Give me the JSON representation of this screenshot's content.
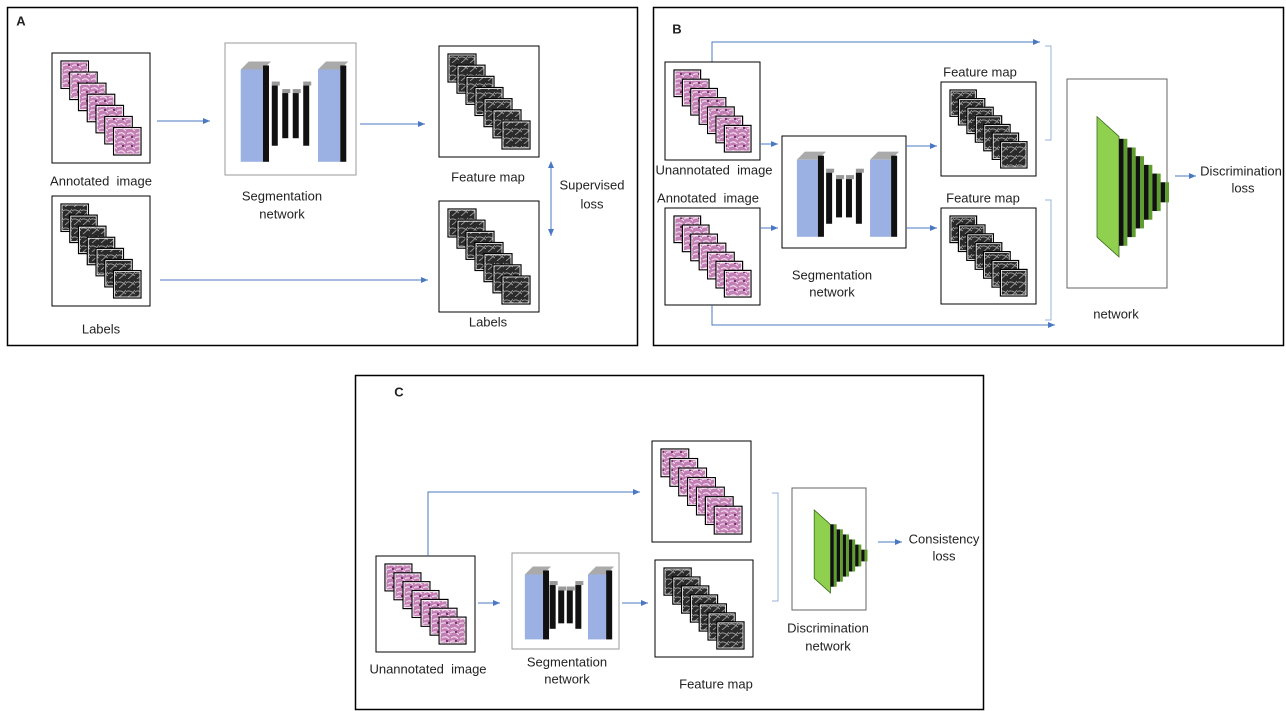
{
  "panel_a": {
    "label": "A",
    "annotated_image": "Annotated  image",
    "segmentation_network": [
      "Segmentation",
      "network"
    ],
    "feature_map": "Feature map",
    "supervised_loss": [
      "Supervised",
      "loss"
    ],
    "labels_input": "Labels",
    "labels_output": "Labels"
  },
  "panel_b": {
    "label": "B",
    "unannotated_image": "Unannotated  image",
    "annotated_image": "Annotated  image",
    "feature_map_top": "Feature map",
    "feature_map_bottom": "Feature map",
    "segmentation_network": [
      "Segmentation",
      "network"
    ],
    "discrimination_network": "network",
    "discrimination_loss": [
      "Discrimination",
      "loss"
    ]
  },
  "panel_c": {
    "label": "C",
    "unannotated_image": "Unannotated  image",
    "segmentation_network": [
      "Segmentation",
      "network"
    ],
    "feature_map": "Feature map",
    "discrimination_network": [
      "Discrimination",
      "network"
    ],
    "consistency_loss": [
      "Consistency",
      "loss"
    ]
  }
}
